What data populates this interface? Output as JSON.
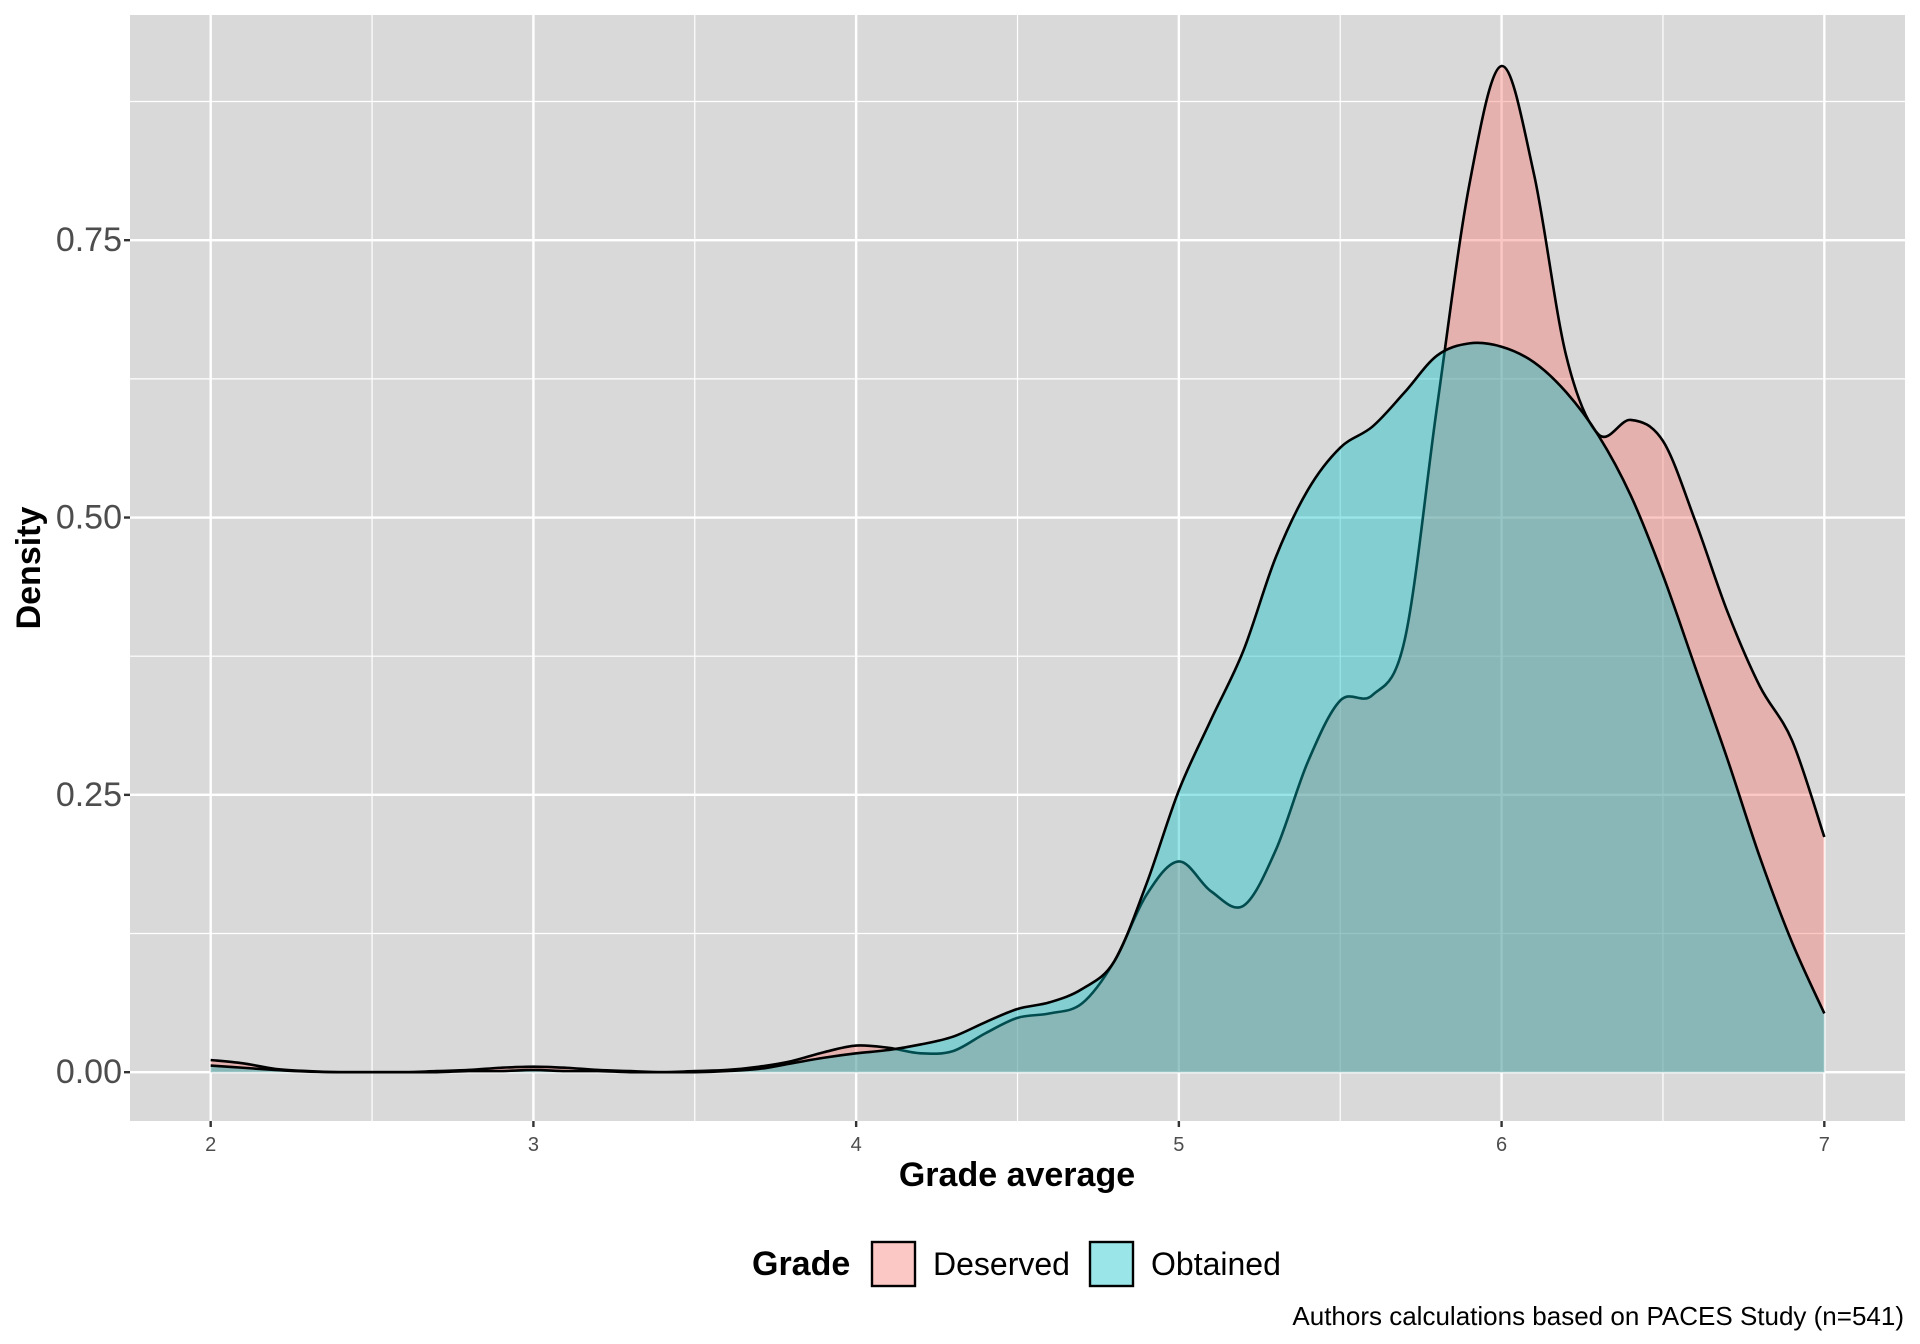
{
  "chart_data": {
    "type": "area",
    "xlabel": "Grade average",
    "ylabel": "Density",
    "xlim": [
      1.75,
      7.25
    ],
    "ylim": [
      -0.044,
      0.953
    ],
    "x_ticks": [
      2,
      3,
      4,
      5,
      6,
      7
    ],
    "x_tick_labels": [
      "2",
      "3",
      "4",
      "5",
      "6",
      "7"
    ],
    "y_ticks": [
      0,
      0.25,
      0.5,
      0.75
    ],
    "y_tick_labels": [
      "0.00",
      "0.25",
      "0.50",
      "0.75"
    ],
    "grid": true,
    "fill_alpha": 0.4,
    "x": [
      2.0,
      2.1,
      2.2,
      2.3,
      2.4,
      2.5,
      2.6,
      2.7,
      2.8,
      2.9,
      3.0,
      3.1,
      3.2,
      3.3,
      3.4,
      3.5,
      3.6,
      3.7,
      3.8,
      3.9,
      4.0,
      4.1,
      4.2,
      4.3,
      4.4,
      4.5,
      4.6,
      4.7,
      4.8,
      4.9,
      5.0,
      5.1,
      5.2,
      5.3,
      5.4,
      5.5,
      5.6,
      5.7,
      5.8,
      5.9,
      6.0,
      6.1,
      6.2,
      6.3,
      6.4,
      6.5,
      6.6,
      6.7,
      6.8,
      6.9,
      7.0
    ],
    "series": [
      {
        "name": "Deserved",
        "color": "#F8766D",
        "values": [
          0.011,
          0.008,
          0.003,
          0.001,
          0,
          0,
          0,
          0.001,
          0.002,
          0.004,
          0.005,
          0.004,
          0.002,
          0.001,
          0,
          0.001,
          0.002,
          0.005,
          0.01,
          0.018,
          0.024,
          0.022,
          0.017,
          0.019,
          0.035,
          0.049,
          0.053,
          0.062,
          0.1,
          0.16,
          0.19,
          0.163,
          0.15,
          0.2,
          0.28,
          0.335,
          0.34,
          0.39,
          0.6,
          0.8,
          0.907,
          0.81,
          0.646,
          0.575,
          0.588,
          0.569,
          0.497,
          0.415,
          0.348,
          0.299,
          0.212
        ]
      },
      {
        "name": "Obtained",
        "color": "#00BFC4",
        "values": [
          0.006,
          0.004,
          0.002,
          0.0005,
          0,
          0,
          0,
          0,
          0.001,
          0.001,
          0.002,
          0.001,
          0.001,
          0,
          0,
          0,
          0.001,
          0.003,
          0.008,
          0.013,
          0.017,
          0.02,
          0.025,
          0.032,
          0.045,
          0.057,
          0.063,
          0.075,
          0.1,
          0.17,
          0.254,
          0.318,
          0.38,
          0.464,
          0.525,
          0.563,
          0.582,
          0.613,
          0.646,
          0.657,
          0.654,
          0.64,
          0.613,
          0.574,
          0.52,
          0.448,
          0.365,
          0.282,
          0.194,
          0.117,
          0.053
        ]
      }
    ],
    "legend": {
      "title": "Grade",
      "position": "bottom"
    },
    "caption": "Authors calculations based on PACES Study (n=541)"
  },
  "colors": {
    "panel_background": "#D9D9D9",
    "grid": "#FFFFFF",
    "outline": "#000000"
  }
}
